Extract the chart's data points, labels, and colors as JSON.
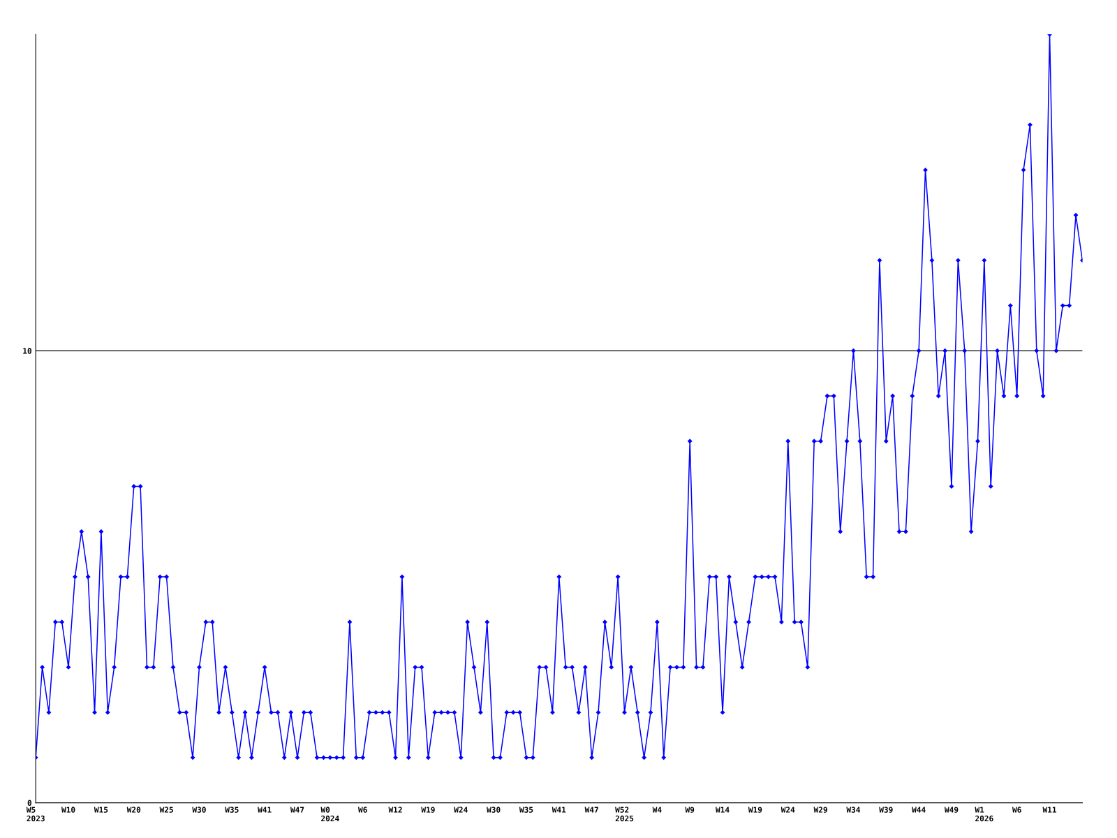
{
  "chart_data": {
    "type": "line",
    "categories": [
      "W5\n2023",
      null,
      null,
      null,
      null,
      "W10",
      null,
      null,
      null,
      null,
      "W15",
      null,
      null,
      null,
      null,
      "W20",
      null,
      null,
      null,
      null,
      "W25",
      null,
      null,
      null,
      null,
      "W30",
      null,
      null,
      null,
      null,
      "W35",
      null,
      null,
      null,
      null,
      "W41",
      null,
      null,
      null,
      null,
      "W47",
      null,
      null,
      null,
      null,
      "W0\n2024",
      null,
      null,
      null,
      null,
      "W6",
      null,
      null,
      null,
      null,
      "W12",
      null,
      null,
      null,
      null,
      "W19",
      null,
      null,
      null,
      null,
      "W24",
      null,
      null,
      null,
      null,
      "W30",
      null,
      null,
      null,
      null,
      "W35",
      null,
      null,
      null,
      null,
      "W41",
      null,
      null,
      null,
      null,
      "W47",
      null,
      null,
      null,
      null,
      "W52\n2025",
      null,
      null,
      null,
      null,
      "W4",
      null,
      null,
      null,
      null,
      "W9",
      null,
      null,
      null,
      null,
      "W14",
      null,
      null,
      null,
      null,
      "W19",
      null,
      null,
      null,
      null,
      "W24",
      null,
      null,
      null,
      null,
      "W29",
      null,
      null,
      null,
      null,
      "W34",
      null,
      null,
      null,
      null,
      "W39",
      null,
      null,
      null,
      null,
      "W44",
      null,
      null,
      null,
      null,
      "W49",
      null,
      null,
      null,
      null,
      "W1\n2026",
      null,
      null,
      null,
      null,
      "W6",
      null,
      null,
      null,
      null,
      "W11",
      null,
      null,
      null,
      null,
      null
    ],
    "series": [
      {
        "color": "#0000ff",
        "values": [
          1,
          3,
          2,
          4,
          4,
          3,
          5,
          6,
          5,
          2,
          6,
          2,
          3,
          5,
          5,
          7,
          7,
          3,
          3,
          5,
          5,
          3,
          2,
          2,
          1,
          3,
          4,
          4,
          2,
          3,
          2,
          1,
          2,
          1,
          2,
          3,
          2,
          2,
          1,
          2,
          1,
          2,
          2,
          1,
          1,
          1,
          1,
          1,
          4,
          1,
          1,
          2,
          2,
          2,
          2,
          1,
          5,
          1,
          3,
          3,
          1,
          2,
          2,
          2,
          2,
          1,
          4,
          3,
          2,
          4,
          1,
          1,
          2,
          2,
          2,
          1,
          1,
          3,
          3,
          2,
          5,
          3,
          3,
          2,
          3,
          1,
          2,
          4,
          3,
          5,
          2,
          3,
          2,
          1,
          2,
          4,
          1,
          3,
          3,
          3,
          8,
          3,
          3,
          5,
          5,
          2,
          5,
          4,
          3,
          4,
          5,
          5,
          5,
          5,
          4,
          8,
          4,
          4,
          3,
          8,
          8,
          9,
          9,
          6,
          8,
          10,
          8,
          5,
          5,
          12,
          8,
          9,
          6,
          6,
          9,
          10,
          14,
          12,
          9,
          10,
          7,
          12,
          10,
          6,
          8,
          12,
          7,
          10,
          9,
          11,
          9,
          14,
          15,
          10,
          9,
          17,
          10,
          11,
          11,
          13,
          12
        ]
      }
    ],
    "ylim": [
      0,
      17
    ],
    "yticks": [
      0,
      10
    ],
    "grid": "y",
    "marker": "diamond",
    "line_style": "solid",
    "legend": false
  }
}
